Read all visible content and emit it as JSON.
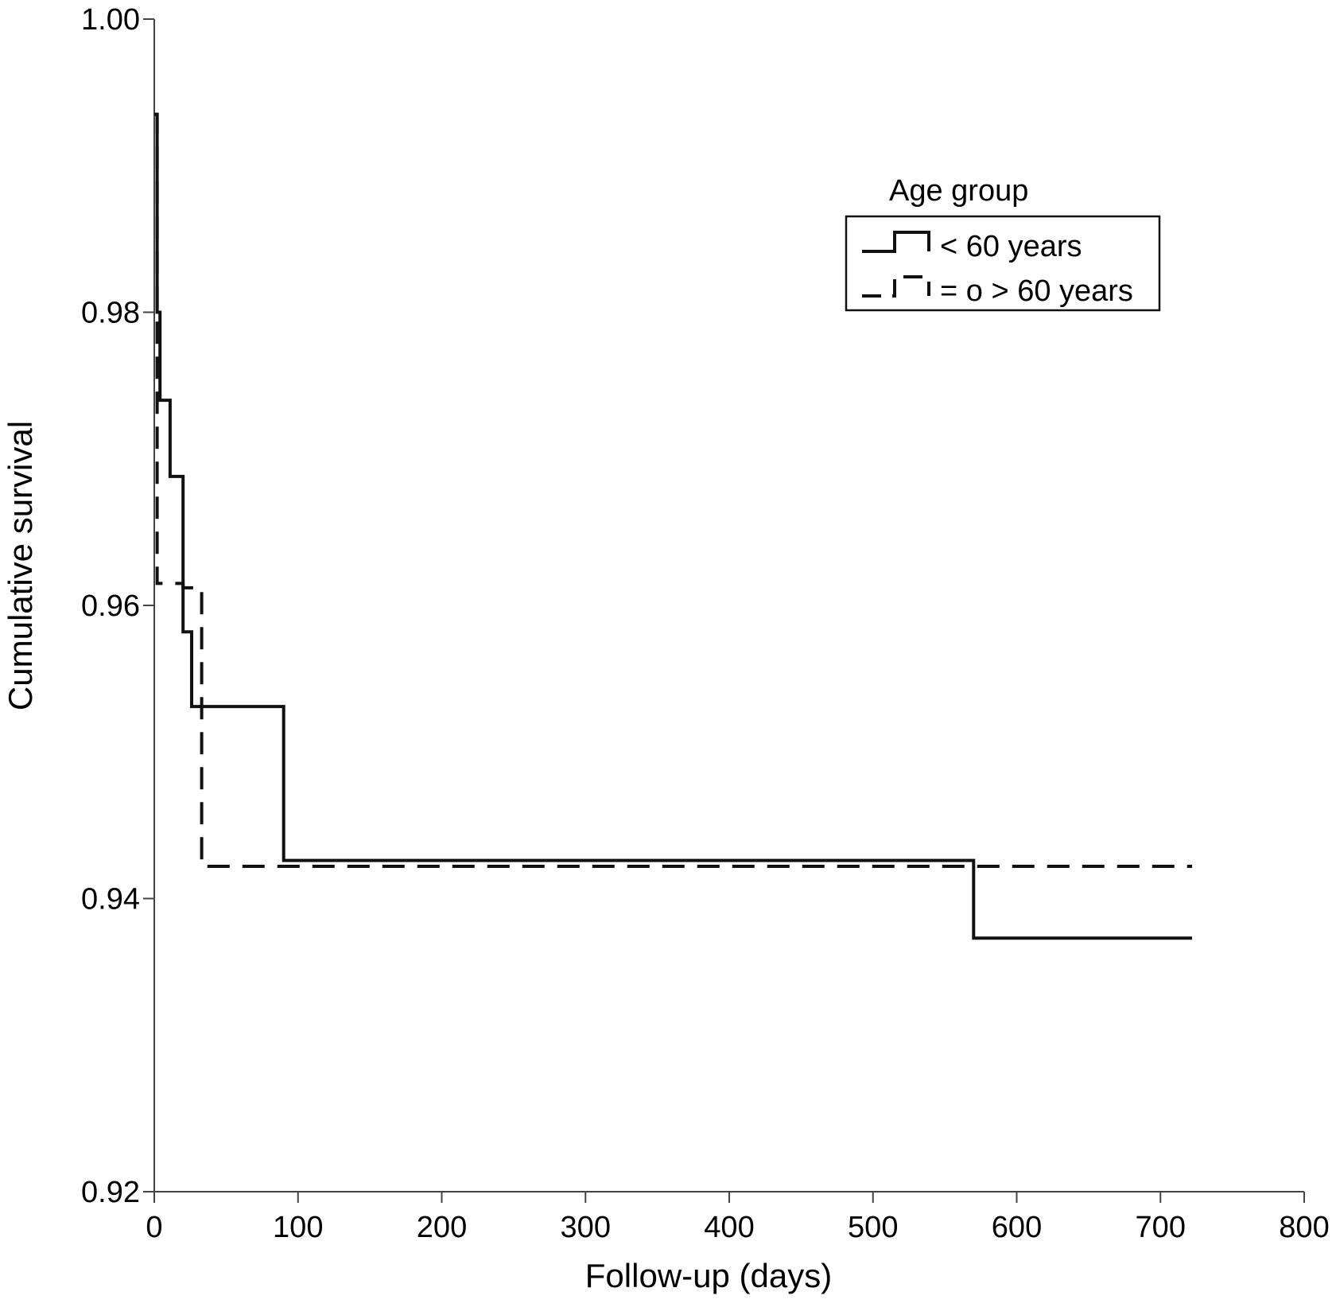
{
  "chart_data": {
    "type": "line",
    "step": true,
    "title": "",
    "xlabel": "Follow-up (days)",
    "ylabel": "Cumulative survival",
    "xlim": [
      0,
      800
    ],
    "ylim": [
      0.92,
      1.0
    ],
    "x_ticks": [
      0,
      100,
      200,
      300,
      400,
      500,
      600,
      700,
      800
    ],
    "x_tick_labels": [
      "0",
      "100",
      "200",
      "300",
      "400",
      "500",
      "600",
      "700",
      "800"
    ],
    "y_ticks": [
      0.92,
      0.94,
      0.96,
      0.98,
      1.0
    ],
    "y_tick_labels": [
      "0.92",
      "0.94",
      "0.96",
      "0.98",
      "1.00"
    ],
    "grid": false,
    "legend": {
      "title": "Age group",
      "position": "top-right"
    },
    "series": [
      {
        "name": "< 60 years",
        "style": "solid",
        "color": "#111111",
        "points": [
          [
            0,
            0.9935
          ],
          [
            2,
            0.9935
          ],
          [
            2,
            0.98
          ],
          [
            4,
            0.98
          ],
          [
            4,
            0.974
          ],
          [
            11,
            0.974
          ],
          [
            11,
            0.9688
          ],
          [
            20,
            0.9688
          ],
          [
            20,
            0.9582
          ],
          [
            26,
            0.9582
          ],
          [
            26,
            0.9531
          ],
          [
            90,
            0.9531
          ],
          [
            90,
            0.9426
          ],
          [
            570,
            0.9426
          ],
          [
            570,
            0.9373
          ],
          [
            722,
            0.9373
          ]
        ]
      },
      {
        "name": "= o > 60 years",
        "style": "dashed",
        "color": "#111111",
        "points": [
          [
            0,
            0.9935
          ],
          [
            2,
            0.9935
          ],
          [
            2,
            0.9615
          ],
          [
            20,
            0.9615
          ],
          [
            20,
            0.9612
          ],
          [
            33,
            0.9612
          ],
          [
            33,
            0.9422
          ],
          [
            722,
            0.9422
          ]
        ]
      }
    ]
  }
}
